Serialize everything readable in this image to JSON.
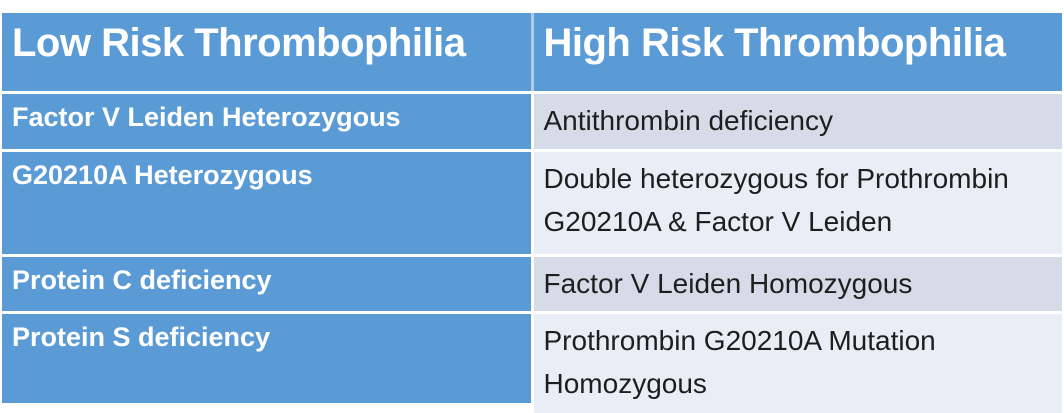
{
  "theme": {
    "page-bg": "#FFFFFF",
    "header-bg": "#5B9BD5",
    "header-text": "#FFFFFF",
    "header-divider": "#AECDE9",
    "left-cell-bg": "#5B9BD5",
    "left-text": "#FFFFFF",
    "band-odd-bg": "#D5DCE8",
    "band-even-bg": "#E9EDF6",
    "right-text": "#1E1E1E",
    "grid-line": "#FFFFFF"
  },
  "table": {
    "headers": [
      "Low Risk Thrombophilia",
      "High Risk Thrombophilia"
    ],
    "rows": [
      {
        "low_risk": "Factor V Leiden Heterozygous",
        "high_risk": "Antithrombin deficiency"
      },
      {
        "low_risk": "G20210A Heterozygous",
        "high_risk": "Double heterozygous for Prothrombin G20210A & Factor V Leiden"
      },
      {
        "low_risk": "Protein C deficiency",
        "high_risk": "Factor V Leiden Homozygous"
      },
      {
        "low_risk": "Protein S deficiency",
        "high_risk": "Prothrombin G20210A Mutation Homozygous"
      }
    ]
  }
}
